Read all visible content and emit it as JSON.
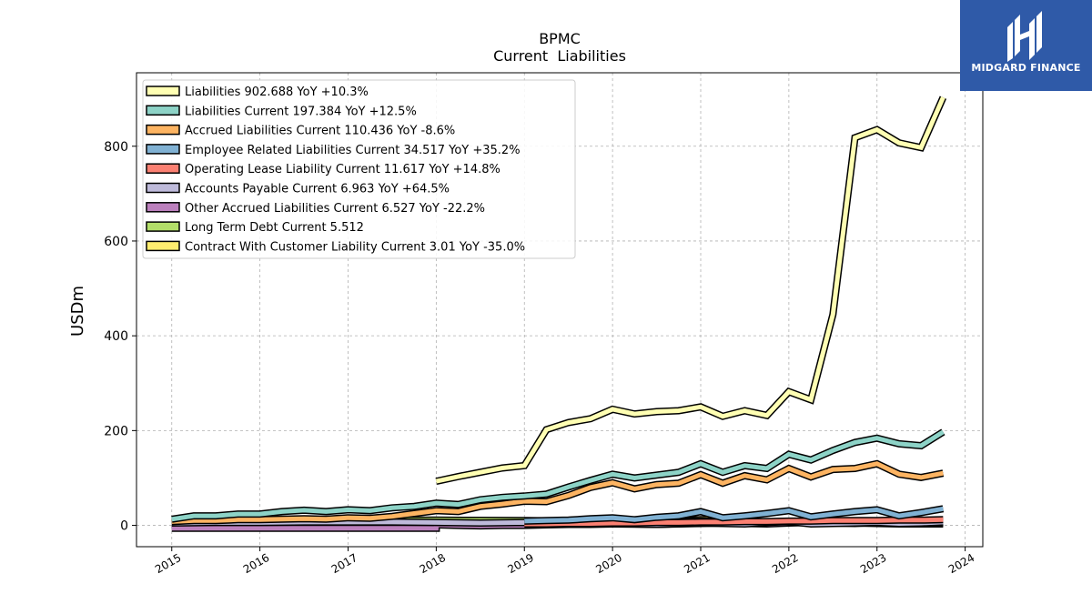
{
  "chart_data": {
    "type": "line",
    "title": "BPMC",
    "subtitle": "Current  Liabilities",
    "ylabel": "USDm",
    "xlabel": "",
    "xlim": [
      2014.6,
      2024.2
    ],
    "ylim": [
      -45,
      955
    ],
    "x_ticks": [
      2015,
      2016,
      2017,
      2018,
      2019,
      2020,
      2021,
      2022,
      2023,
      2024
    ],
    "y_ticks": [
      0,
      200,
      400,
      600,
      800
    ],
    "grid": true,
    "legend_position": "top-left",
    "series": [
      {
        "name": "Liabilities",
        "legend_label": "Liabilities  902.688 YoY +10.3%",
        "color": "#ffffb3",
        "x": [
          2018.0,
          2018.25,
          2018.5,
          2018.75,
          2019.0,
          2019.25,
          2019.5,
          2019.75,
          2020.0,
          2020.25,
          2020.5,
          2020.75,
          2021.0,
          2021.25,
          2021.5,
          2021.75,
          2022.0,
          2022.25,
          2022.5,
          2022.75,
          2023.0,
          2023.25,
          2023.5,
          2023.75
        ],
        "y": [
          93,
          103,
          112,
          121,
          126,
          202,
          217,
          225,
          245,
          235,
          240,
          242,
          250,
          230,
          242,
          232,
          282,
          265,
          445,
          818,
          835,
          807,
          797,
          903
        ]
      },
      {
        "name": "Liabilities Current",
        "legend_label": "Liabilities Current  197.384 YoY +12.5%",
        "color": "#8dd3c7",
        "x": [
          2015.0,
          2015.25,
          2015.5,
          2015.75,
          2016.0,
          2016.25,
          2016.5,
          2016.75,
          2017.0,
          2017.25,
          2017.5,
          2017.75,
          2018.0,
          2018.25,
          2018.5,
          2018.75,
          2019.0,
          2019.25,
          2019.5,
          2019.75,
          2020.0,
          2020.25,
          2020.5,
          2020.75,
          2021.0,
          2021.25,
          2021.5,
          2021.75,
          2022.0,
          2022.25,
          2022.5,
          2022.75,
          2023.0,
          2023.25,
          2023.5,
          2023.75
        ],
        "y": [
          13,
          20,
          20,
          24,
          24,
          29,
          32,
          29,
          33,
          31,
          37,
          40,
          47,
          44,
          54,
          59,
          62,
          66,
          81,
          95,
          108,
          100,
          106,
          112,
          130,
          112,
          126,
          120,
          150,
          138,
          158,
          175,
          184,
          172,
          168,
          197
        ]
      },
      {
        "name": "Accrued Liabilities Current",
        "legend_label": "Accrued Liabilities Current  110.436 YoY -8.6%",
        "color": "#fdb462",
        "x": [
          2015.0,
          2015.25,
          2015.5,
          2015.75,
          2016.0,
          2016.25,
          2016.5,
          2016.75,
          2017.0,
          2017.25,
          2017.5,
          2017.75,
          2018.0,
          2018.25,
          2018.5,
          2018.75,
          2019.0,
          2019.25,
          2019.5,
          2019.75,
          2020.0,
          2020.25,
          2020.5,
          2020.75,
          2021.0,
          2021.25,
          2021.5,
          2021.75,
          2022.0,
          2022.25,
          2022.5,
          2022.75,
          2023.0,
          2023.25,
          2023.5,
          2023.75
        ],
        "y": [
          8,
          10,
          10,
          12,
          12,
          13,
          14,
          13,
          16,
          15,
          19,
          25,
          31,
          29,
          40,
          45,
          51,
          50,
          63,
          80,
          90,
          77,
          86,
          89,
          107,
          89,
          105,
          96,
          120,
          102,
          118,
          120,
          130,
          108,
          101,
          110
        ]
      },
      {
        "name": "Employee Related Liabilities Current",
        "legend_label": "Employee Related Liabilities Current  34.517 YoY +35.2%",
        "color": "#80b1d3",
        "x": [
          2019.0,
          2019.25,
          2019.5,
          2019.75,
          2020.0,
          2020.25,
          2020.5,
          2020.75,
          2021.0,
          2021.25,
          2021.5,
          2021.75,
          2022.0,
          2022.25,
          2022.5,
          2022.75,
          2023.0,
          2023.25,
          2023.5,
          2023.75
        ],
        "y": [
          9,
          10,
          11,
          14,
          16,
          12,
          17,
          20,
          29,
          16,
          20,
          25,
          31,
          18,
          24,
          29,
          33,
          20,
          27,
          35
        ]
      },
      {
        "name": "Operating Lease Liability Current",
        "legend_label": "Operating Lease Liability Current  11.617 YoY +14.8%",
        "color": "#fb8072",
        "x": [
          2019.0,
          2019.25,
          2019.5,
          2019.75,
          2020.0,
          2020.25,
          2020.5,
          2020.75,
          2021.0,
          2021.25,
          2021.5,
          2021.75,
          2022.0,
          2022.25,
          2022.5,
          2022.75,
          2023.0,
          2023.25,
          2023.5,
          2023.75
        ],
        "y": [
          3,
          3,
          4,
          4,
          5,
          5,
          6,
          6,
          7,
          7,
          8,
          8,
          9,
          9,
          10,
          10,
          10,
          11,
          11,
          12
        ]
      },
      {
        "name": "Accounts Payable Current",
        "legend_label": "Accounts Payable Current  6.963 YoY +64.5%",
        "color": "#bebada",
        "x": [
          2015.0,
          2015.5,
          2016.0,
          2016.5,
          2017.0,
          2017.5,
          2018.0,
          2018.5,
          2019.0,
          2019.5,
          2020.0,
          2020.5,
          2021.0,
          2021.25,
          2021.5,
          2021.75,
          2022.0,
          2022.25,
          2022.5,
          2022.75,
          2023.0,
          2023.25,
          2023.5,
          2023.75
        ],
        "y": [
          5,
          6,
          6,
          7,
          7,
          7,
          6,
          5,
          6,
          4,
          3,
          2,
          5,
          4,
          3,
          6,
          8,
          3,
          4,
          5,
          6,
          4,
          5,
          7
        ]
      },
      {
        "name": "Other Accrued Liabilities Current",
        "legend_label": "Other Accrued Liabilities Current  6.527 YoY -22.2%",
        "color": "#bc80bd",
        "x": [
          2015.0,
          2015.25,
          2015.5,
          2015.75,
          2016.0,
          2016.25,
          2016.5,
          2016.75,
          2017.0,
          2017.25,
          2017.5,
          2017.75,
          2018.0,
          2018.0,
          2018.25,
          2018.5,
          2018.75,
          2019.0,
          2019.25,
          2019.5,
          2019.75,
          2020.0,
          2020.25,
          2020.5,
          2020.75,
          2021.0,
          2021.25,
          2021.5,
          2021.75,
          2022.0,
          2022.25,
          2022.5,
          2022.75,
          2023.0,
          2023.25,
          2023.5,
          2023.75
        ],
        "y": [
          -6,
          -6,
          -6,
          -6,
          -6,
          -6,
          -6,
          -6,
          -6,
          -6,
          -6,
          -6,
          -6,
          1,
          0,
          -1,
          0,
          0,
          1,
          2,
          2,
          3,
          3,
          2,
          3,
          4,
          5,
          4,
          3,
          5,
          6,
          5,
          4,
          6,
          7,
          6,
          6.5
        ]
      },
      {
        "name": "Long Term Debt Current",
        "legend_label": "Long Term Debt Current  5.512",
        "color": "#b3de69",
        "x": [
          2015.0,
          2016.0,
          2017.0,
          2018.0,
          2019.0,
          2020.0,
          2021.0,
          2022.0,
          2023.0,
          2023.75
        ],
        "y": [
          9,
          10,
          10,
          11,
          10,
          8,
          9,
          7,
          6,
          5.5
        ]
      },
      {
        "name": "Contract With Customer Liability Current",
        "legend_label": "Contract With Customer Liability Current  3.01 YoY -35.0%",
        "color": "#ffed6f",
        "x": [
          2018.0,
          2018.25,
          2018.5,
          2018.75,
          2019.0,
          2019.25,
          2019.5,
          2019.75,
          2020.0,
          2020.25,
          2020.5,
          2020.75,
          2021.0,
          2021.25,
          2021.5,
          2021.75,
          2022.0,
          2022.25,
          2022.5,
          2022.75,
          2023.0,
          2023.25,
          2023.5,
          2023.75
        ],
        "y": [
          3,
          3,
          3,
          3,
          4,
          4,
          5,
          6,
          8,
          10,
          11,
          11,
          12,
          13,
          7,
          6,
          8,
          8,
          7,
          5,
          4,
          3,
          3,
          3
        ]
      }
    ]
  },
  "logo": {
    "text": "MIDGARD FINANCE",
    "background": "#2f5aa8"
  }
}
